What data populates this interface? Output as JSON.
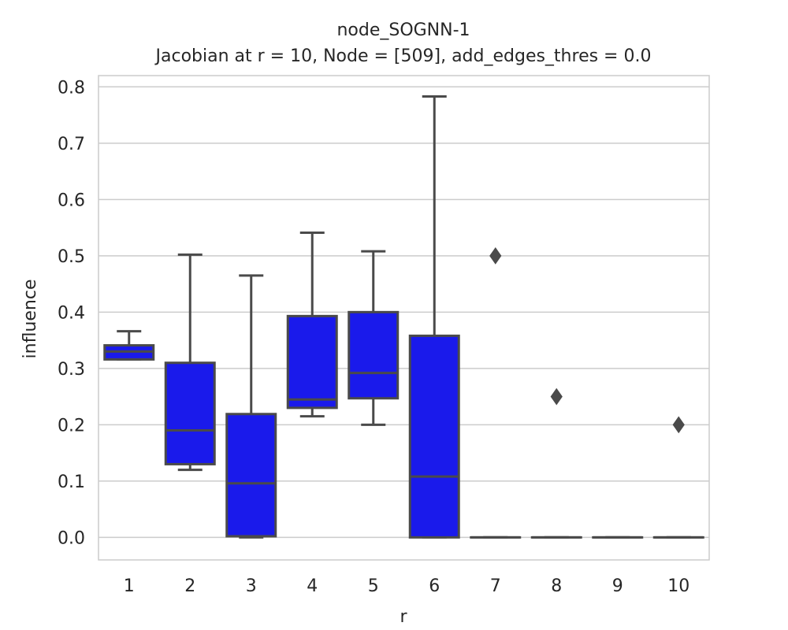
{
  "chart_data": {
    "type": "box",
    "title": "node_SOGNN-1",
    "subtitle": "Jacobian at r = 10, Node = [509], add_edges_thres = 0.0",
    "xlabel": "r",
    "ylabel": "influence",
    "ylim": [
      -0.04,
      0.82
    ],
    "yticks": [
      "0.0",
      "0.1",
      "0.2",
      "0.3",
      "0.4",
      "0.5",
      "0.6",
      "0.7",
      "0.8"
    ],
    "ytick_values": [
      0.0,
      0.1,
      0.2,
      0.3,
      0.4,
      0.5,
      0.6,
      0.7,
      0.8
    ],
    "categories": [
      "1",
      "2",
      "3",
      "4",
      "5",
      "6",
      "7",
      "8",
      "9",
      "10"
    ],
    "grid": true,
    "box_color": "#1a1aeb",
    "edge_color": "#4a4a4a",
    "boxes": [
      {
        "r": "1",
        "whisker_low": 0.316,
        "q1": 0.316,
        "median": 0.33,
        "q3": 0.341,
        "whisker_high": 0.366,
        "outliers": []
      },
      {
        "r": "2",
        "whisker_low": 0.12,
        "q1": 0.13,
        "median": 0.19,
        "q3": 0.31,
        "whisker_high": 0.502,
        "outliers": []
      },
      {
        "r": "3",
        "whisker_low": 0.0,
        "q1": 0.002,
        "median": 0.096,
        "q3": 0.219,
        "whisker_high": 0.465,
        "outliers": []
      },
      {
        "r": "4",
        "whisker_low": 0.215,
        "q1": 0.23,
        "median": 0.245,
        "q3": 0.393,
        "whisker_high": 0.541,
        "outliers": []
      },
      {
        "r": "5",
        "whisker_low": 0.2,
        "q1": 0.247,
        "median": 0.292,
        "q3": 0.4,
        "whisker_high": 0.508,
        "outliers": []
      },
      {
        "r": "6",
        "whisker_low": 0.0,
        "q1": 0.0,
        "median": 0.108,
        "q3": 0.358,
        "whisker_high": 0.783,
        "outliers": []
      },
      {
        "r": "7",
        "whisker_low": 0.0,
        "q1": 0.0,
        "median": 0.0,
        "q3": 0.0,
        "whisker_high": 0.0,
        "outliers": [
          0.5
        ]
      },
      {
        "r": "8",
        "whisker_low": 0.0,
        "q1": 0.0,
        "median": 0.0,
        "q3": 0.0,
        "whisker_high": 0.0,
        "outliers": [
          0.25
        ]
      },
      {
        "r": "9",
        "whisker_low": 0.0,
        "q1": 0.0,
        "median": 0.0,
        "q3": 0.0,
        "whisker_high": 0.0,
        "outliers": []
      },
      {
        "r": "10",
        "whisker_low": 0.0,
        "q1": 0.0,
        "median": 0.0,
        "q3": 0.0,
        "whisker_high": 0.0,
        "outliers": [
          0.2
        ]
      }
    ]
  }
}
